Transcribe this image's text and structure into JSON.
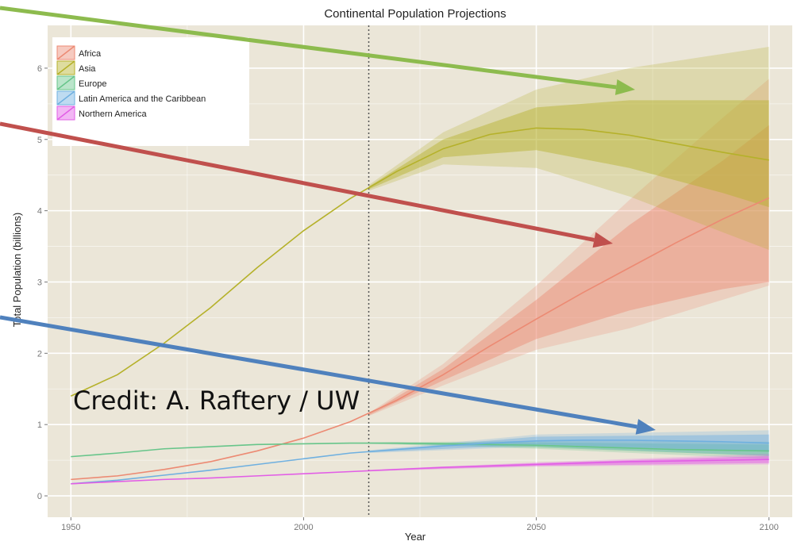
{
  "colors": {
    "panel": "#ebe6d8",
    "grid": "#ffffff",
    "Africa": "#ec8a73",
    "Asia": "#b5b12a",
    "Europe": "#67c58a",
    "Latin America and the Caribbean": "#6fb0e0",
    "Northern America": "#e25ee6",
    "arrow_green": "#8dbb4e",
    "arrow_red": "#c0504d",
    "arrow_blue": "#4f81bd"
  },
  "annotations": {
    "credit": "Credit: A. Raftery / UW"
  },
  "chart_data": {
    "type": "line",
    "title": "Continental Population Projections",
    "xlabel": "Year",
    "ylabel": "Total Population (billions)",
    "xlim": [
      1945,
      2105
    ],
    "ylim": [
      -0.3,
      6.6
    ],
    "xticks": [
      1950,
      2000,
      2050,
      2100
    ],
    "yticks": [
      0,
      1,
      2,
      3,
      4,
      5,
      6
    ],
    "grid": true,
    "legend_position": "top-left",
    "reference_line_x": 2014,
    "series": [
      {
        "name": "Africa",
        "x": [
          1950,
          1960,
          1970,
          1980,
          1990,
          2000,
          2010,
          2020,
          2030,
          2040,
          2050,
          2060,
          2070,
          2080,
          2090,
          2100
        ],
        "values": [
          0.23,
          0.28,
          0.37,
          0.48,
          0.63,
          0.81,
          1.04,
          1.34,
          1.7,
          2.1,
          2.48,
          2.85,
          3.2,
          3.55,
          3.88,
          4.18
        ],
        "band80": [
          [
            2014,
            1.13,
            1.15
          ],
          [
            2030,
            1.62,
            1.78
          ],
          [
            2050,
            2.2,
            2.75
          ],
          [
            2070,
            2.6,
            3.8
          ],
          [
            2090,
            2.9,
            4.7
          ],
          [
            2100,
            3.0,
            5.2
          ]
        ],
        "band95": [
          [
            2014,
            1.12,
            1.16
          ],
          [
            2030,
            1.55,
            1.85
          ],
          [
            2050,
            2.05,
            2.95
          ],
          [
            2070,
            2.35,
            4.15
          ],
          [
            2090,
            2.75,
            5.3
          ],
          [
            2100,
            2.95,
            5.85
          ]
        ]
      },
      {
        "name": "Asia",
        "x": [
          1950,
          1960,
          1970,
          1980,
          1990,
          2000,
          2010,
          2020,
          2030,
          2040,
          2050,
          2060,
          2070,
          2080,
          2090,
          2100
        ],
        "values": [
          1.4,
          1.7,
          2.14,
          2.64,
          3.2,
          3.72,
          4.17,
          4.55,
          4.87,
          5.07,
          5.16,
          5.14,
          5.06,
          4.94,
          4.82,
          4.71
        ],
        "band80": [
          [
            2014,
            4.3,
            4.34
          ],
          [
            2030,
            4.75,
            5.0
          ],
          [
            2050,
            4.85,
            5.45
          ],
          [
            2070,
            4.6,
            5.55
          ],
          [
            2090,
            4.25,
            5.55
          ],
          [
            2100,
            4.05,
            5.55
          ]
        ],
        "band95": [
          [
            2014,
            4.28,
            4.36
          ],
          [
            2030,
            4.65,
            5.1
          ],
          [
            2050,
            4.6,
            5.7
          ],
          [
            2070,
            4.2,
            6.0
          ],
          [
            2090,
            3.7,
            6.2
          ],
          [
            2100,
            3.45,
            6.3
          ]
        ]
      },
      {
        "name": "Europe",
        "x": [
          1950,
          1960,
          1970,
          1980,
          1990,
          2000,
          2010,
          2020,
          2030,
          2040,
          2050,
          2060,
          2070,
          2080,
          2090,
          2100
        ],
        "values": [
          0.55,
          0.6,
          0.66,
          0.69,
          0.72,
          0.73,
          0.74,
          0.74,
          0.73,
          0.72,
          0.71,
          0.69,
          0.67,
          0.65,
          0.64,
          0.63
        ],
        "band80": [
          [
            2014,
            0.735,
            0.745
          ],
          [
            2050,
            0.68,
            0.75
          ],
          [
            2100,
            0.56,
            0.72
          ]
        ],
        "band95": [
          [
            2014,
            0.73,
            0.75
          ],
          [
            2050,
            0.66,
            0.77
          ],
          [
            2100,
            0.52,
            0.76
          ]
        ]
      },
      {
        "name": "Latin America and the Caribbean",
        "x": [
          1950,
          1960,
          1970,
          1980,
          1990,
          2000,
          2010,
          2020,
          2030,
          2040,
          2050,
          2060,
          2070,
          2080,
          2090,
          2100
        ],
        "values": [
          0.17,
          0.22,
          0.29,
          0.36,
          0.44,
          0.52,
          0.6,
          0.65,
          0.7,
          0.74,
          0.77,
          0.78,
          0.78,
          0.77,
          0.76,
          0.74
        ],
        "band80": [
          [
            2014,
            0.61,
            0.63
          ],
          [
            2050,
            0.72,
            0.83
          ],
          [
            2100,
            0.62,
            0.86
          ]
        ],
        "band95": [
          [
            2014,
            0.6,
            0.64
          ],
          [
            2050,
            0.69,
            0.86
          ],
          [
            2100,
            0.56,
            0.92
          ]
        ]
      },
      {
        "name": "Northern America",
        "x": [
          1950,
          1960,
          1970,
          1980,
          1990,
          2000,
          2010,
          2020,
          2030,
          2040,
          2050,
          2060,
          2070,
          2080,
          2090,
          2100
        ],
        "values": [
          0.17,
          0.2,
          0.23,
          0.25,
          0.28,
          0.31,
          0.34,
          0.37,
          0.4,
          0.42,
          0.44,
          0.46,
          0.48,
          0.49,
          0.5,
          0.51
        ],
        "band80": [
          [
            2014,
            0.35,
            0.36
          ],
          [
            2050,
            0.42,
            0.46
          ],
          [
            2100,
            0.46,
            0.56
          ]
        ],
        "band95": [
          [
            2014,
            0.345,
            0.365
          ],
          [
            2050,
            0.41,
            0.47
          ],
          [
            2100,
            0.44,
            0.59
          ]
        ]
      }
    ]
  }
}
